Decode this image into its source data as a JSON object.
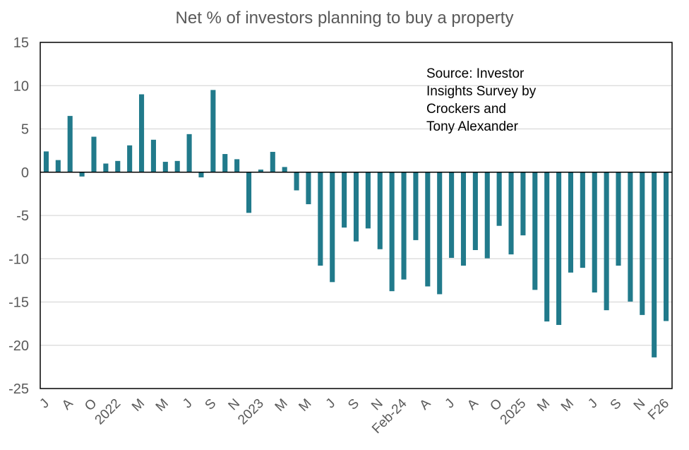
{
  "chart_data": {
    "type": "bar",
    "title": "Net % of investors planning to buy a property",
    "xlabel": "",
    "ylabel": "",
    "ylim": [
      -25,
      15
    ],
    "yticks": [
      15,
      10,
      5,
      0,
      -5,
      -10,
      -15,
      -20,
      -25
    ],
    "grid": true,
    "legend": "none",
    "bar_color": "#217A8B",
    "annotation": [
      "Source: Investor",
      "Insights Survey by",
      "Crockers and",
      "Tony Alexander"
    ],
    "categories": [
      "J",
      "",
      "A",
      "",
      "O",
      "",
      "2022",
      "",
      "M",
      "",
      "M",
      "",
      "J",
      "",
      "S",
      "",
      "N",
      "",
      "2023",
      "",
      "M",
      "",
      "M",
      "",
      "J",
      "",
      "S",
      "",
      "N",
      "",
      "Feb-24",
      "",
      "A",
      "",
      "J",
      "",
      "A",
      "",
      "O",
      "",
      "2025",
      "",
      "M",
      "",
      "M",
      "",
      "J",
      "",
      "S",
      "",
      "N",
      "",
      "F26"
    ],
    "values": [
      2.4,
      1.4,
      6.5,
      -0.5,
      4.1,
      1.0,
      1.3,
      3.1,
      9.0,
      3.75,
      1.2,
      1.3,
      4.4,
      -0.6,
      9.5,
      2.1,
      1.5,
      -4.7,
      0.3,
      2.35,
      0.6,
      -2.1,
      -3.7,
      -10.8,
      -12.7,
      -6.4,
      -8.0,
      -6.5,
      -8.9,
      -13.75,
      -12.4,
      -7.85,
      -13.2,
      -14.1,
      -9.9,
      -10.8,
      -9.0,
      -9.95,
      -6.2,
      -9.5,
      -7.3,
      -13.6,
      -17.25,
      -17.65,
      -11.6,
      -11.05,
      -13.9,
      -15.95,
      -10.8,
      -14.95,
      -16.5,
      -21.4,
      -17.2
    ]
  }
}
